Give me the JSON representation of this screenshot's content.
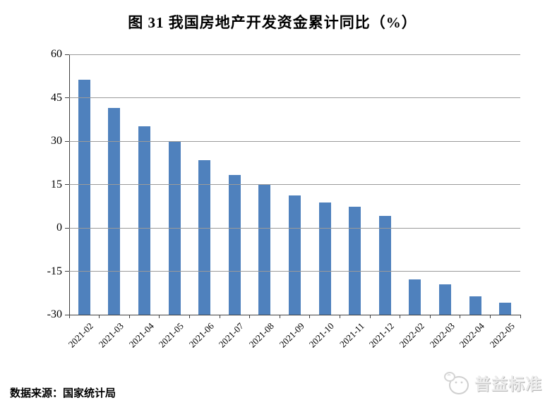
{
  "title": "图 31 我国房地产开发资金累计同比（%）",
  "source_note": "数据来源：国家统计局",
  "watermark": {
    "brand": "普益标准"
  },
  "colors": {
    "bar": "#4F81BD",
    "gridline": "#9a9a9a",
    "axis": "#404040",
    "text": "#000000",
    "watermark_text": "#ececec"
  },
  "chart_data": {
    "type": "bar",
    "title": "图 31 我国房地产开发资金累计同比（%）",
    "xlabel": "",
    "ylabel": "",
    "categories": [
      "2021-02",
      "2021-03",
      "2021-04",
      "2021-05",
      "2021-06",
      "2021-07",
      "2021-08",
      "2021-09",
      "2021-10",
      "2021-11",
      "2021-12",
      "2022-02",
      "2022-03",
      "2022-04",
      "2022-05"
    ],
    "values": [
      51.2,
      41.4,
      35.2,
      29.9,
      23.5,
      18.2,
      14.8,
      11.1,
      8.8,
      7.2,
      4.2,
      -17.7,
      -19.6,
      -23.6,
      -25.8
    ],
    "ylim": [
      -30,
      60
    ],
    "yticks": [
      60,
      45,
      30,
      15,
      0,
      -15,
      -30
    ],
    "bar_baseline": -30,
    "grid": true,
    "legend": "none",
    "bar_color": "#4F81BD"
  }
}
